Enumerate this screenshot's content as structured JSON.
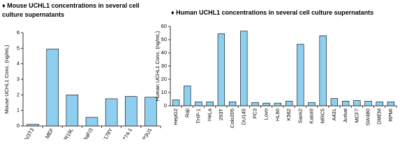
{
  "chart_data": [
    {
      "type": "bar",
      "title": "♦ Mouse UCHL1 concentrations in several cell culture supernatants",
      "y_label": "Mouse UCHL1 Conc. (ng/mL)",
      "categories": [
        "Balb/3T3",
        "MEF",
        "WR19L",
        "BaF/3",
        "L5178Y",
        "J774-1",
        "P3U1"
      ],
      "values": [
        0.1,
        4.95,
        2.0,
        0.55,
        1.75,
        1.9,
        1.85
      ],
      "color": "#8ecff0",
      "ylim": [
        0,
        6
      ],
      "yticks": [
        0,
        1,
        2,
        3,
        4,
        5,
        6
      ],
      "grid": false
    },
    {
      "type": "bar",
      "title": "♦ Human UCHL1 concentrations in several cell culture supernatants",
      "y_label": "Human UCHL1 Conc. (ng/mL)",
      "categories": [
        "HepG2",
        "Raji",
        "THP-1",
        "HeLa",
        "293T",
        "Colo205",
        "DU145",
        "PC3",
        "Lovo",
        "HL60",
        "K562",
        "Saos2",
        "KatoIII",
        "MRC5",
        "A431",
        "Jurkat",
        "MCF7",
        "SW480",
        "DMEM",
        "RPMI"
      ],
      "values": [
        4.5,
        15,
        3,
        3,
        54.5,
        3,
        56.5,
        2.5,
        2,
        2,
        3.5,
        46.5,
        2.5,
        53,
        5.5,
        3.5,
        4,
        3.5,
        3,
        3
      ],
      "color": "#8ecff0",
      "ylim": [
        0,
        60
      ],
      "yticks": [
        0,
        10,
        20,
        30,
        40,
        50,
        60
      ],
      "grid": false
    }
  ]
}
